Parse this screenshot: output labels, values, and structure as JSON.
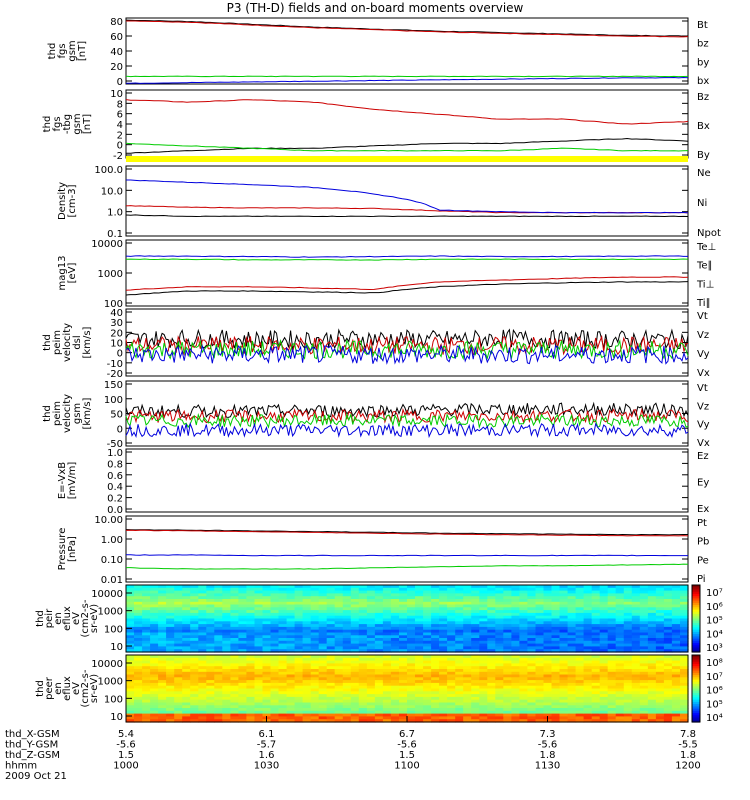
{
  "title": "P3 (TH-D) fields and on-board moments overview",
  "colors": {
    "black": "#000000",
    "red": "#cc0000",
    "green": "#00cc00",
    "blue": "#0000dd",
    "yellow": "#ffff00"
  },
  "chart_data": {
    "type": "line",
    "x_range": [
      "10:00",
      "12:00"
    ],
    "panels": [
      {
        "id": "fgs",
        "ylabel": [
          "thd",
          "fgs",
          "gsm",
          "[nT]"
        ],
        "ticks": [
          "80",
          "60",
          "40",
          "20",
          "0"
        ],
        "ylim": [
          -10,
          85
        ],
        "series": [
          {
            "name": "Bt",
            "color": "black",
            "values": [
              82,
              80,
              76,
              72,
              69,
              66,
              64,
              62,
              60,
              59
            ]
          },
          {
            "name": "bz",
            "color": "red",
            "values": [
              81,
              79,
              75,
              71,
              68,
              65,
              63,
              61,
              59,
              58
            ]
          },
          {
            "name": "by",
            "color": "green",
            "values": [
              1,
              1,
              1,
              1,
              1,
              1,
              1,
              1,
              1,
              1
            ]
          },
          {
            "name": "bx",
            "color": "blue",
            "values": [
              -9,
              -8,
              -7,
              -6,
              -5,
              -4,
              -3,
              -2,
              -1,
              -1
            ]
          }
        ]
      },
      {
        "id": "fgs_dbg",
        "ylabel": [
          "thd",
          "fgs",
          "-tbg",
          "gsm",
          "[nT]"
        ],
        "ticks": [
          "10",
          "8",
          "6",
          "4",
          "2",
          "0",
          "-2"
        ],
        "ylim": [
          -3,
          11
        ],
        "series": [
          {
            "name": "Bz",
            "color": "red",
            "values": [
              9,
              8.5,
              9,
              8.5,
              7,
              6,
              5,
              5,
              4,
              4.5
            ]
          },
          {
            "name": "Bx",
            "color": "black",
            "values": [
              -2,
              -1.5,
              -1,
              -1,
              -0.5,
              0,
              0,
              0.5,
              1,
              0.5
            ]
          },
          {
            "name": "By",
            "color": "green",
            "values": [
              0,
              -0.5,
              -1,
              -1.5,
              -1.5,
              -1.5,
              -1.5,
              -1,
              -1.5,
              -1.5
            ]
          }
        ]
      },
      {
        "id": "density",
        "ylabel": [
          "Density",
          "[cm-3]"
        ],
        "ticks": [
          "100.0",
          "10.0",
          "1.0",
          "0.1"
        ],
        "log": true,
        "ylim": [
          0.1,
          100
        ],
        "series": [
          {
            "name": "Ne",
            "color": "red",
            "values": [
              2,
              1.7,
              1.6,
              1.6,
              1.5,
              1.2,
              1,
              1,
              1,
              1
            ]
          },
          {
            "name": "Ni",
            "color": "black",
            "values": [
              0.8,
              0.7,
              0.7,
              0.7,
              0.7,
              0.7,
              0.7,
              0.7,
              0.7,
              0.7
            ]
          },
          {
            "name": "Npot",
            "color": "blue",
            "values": [
              25,
              20,
              16,
              12,
              6,
              1.3,
              1.1,
              1,
              1,
              1
            ]
          }
        ]
      },
      {
        "id": "temp",
        "ylabel": [
          "mag13",
          "[eV]"
        ],
        "ticks": [
          "10000",
          "1000",
          "100"
        ],
        "log": true,
        "ylim": [
          40,
          10000
        ],
        "series": [
          {
            "name": "Te⊥",
            "color": "red",
            "values": [
              150,
              200,
              200,
              180,
              160,
              300,
              350,
              400,
              450,
              450
            ]
          },
          {
            "name": "Te∥",
            "color": "black",
            "values": [
              100,
              140,
              140,
              130,
              120,
              200,
              250,
              280,
              300,
              300
            ]
          },
          {
            "name": "Ti⊥",
            "color": "blue",
            "values": [
              2600,
              2600,
              2500,
              2400,
              2500,
              2600,
              2500,
              2500,
              2600,
              2600
            ]
          },
          {
            "name": "Ti∥",
            "color": "green",
            "values": [
              2000,
              2000,
              1900,
              1900,
              1900,
              2000,
              2000,
              2000,
              2000,
              2000
            ]
          }
        ]
      },
      {
        "id": "vel_dsl",
        "ylabel": [
          "thd",
          "peim",
          "velocity",
          "dsl",
          "[km/s]"
        ],
        "ticks": [
          "40",
          "30",
          "20",
          "10",
          "0",
          "-10",
          "-20"
        ],
        "ylim": [
          -24,
          42
        ],
        "series": [
          {
            "name": "Vt",
            "color": "black",
            "values": [
              12,
              13,
              12,
              12,
              13,
              12,
              13,
              12,
              12,
              12
            ]
          },
          {
            "name": "Vz",
            "color": "red",
            "values": [
              6,
              6,
              6,
              6,
              6,
              6,
              6,
              6,
              6,
              6
            ]
          },
          {
            "name": "Vy",
            "color": "green",
            "values": [
              2,
              2,
              2,
              2,
              2,
              2,
              2,
              2,
              2,
              2
            ]
          },
          {
            "name": "Vx",
            "color": "blue",
            "values": [
              -3,
              -3,
              -3,
              -3,
              -3,
              -3,
              -3,
              -3,
              -3,
              -3
            ]
          }
        ]
      },
      {
        "id": "vel_gsm",
        "ylabel": [
          "thd",
          "peim",
          "velocity",
          "gsm",
          "[km/s]"
        ],
        "ticks": [
          "150",
          "100",
          "50",
          "0",
          "-50"
        ],
        "ylim": [
          -75,
          150
        ],
        "series": [
          {
            "name": "Vt",
            "color": "black",
            "values": [
              45,
              45,
              45,
              47,
              48,
              50,
              52,
              52,
              52,
              50
            ]
          },
          {
            "name": "Vz",
            "color": "red",
            "values": [
              28,
              28,
              28,
              28,
              28,
              30,
              30,
              30,
              30,
              30
            ]
          },
          {
            "name": "Vy",
            "color": "green",
            "values": [
              12,
              12,
              12,
              12,
              12,
              12,
              12,
              12,
              12,
              12
            ]
          },
          {
            "name": "Vx",
            "color": "blue",
            "values": [
              -20,
              -20,
              -20,
              -20,
              -20,
              -20,
              -20,
              -20,
              -20,
              -20
            ]
          }
        ]
      },
      {
        "id": "efield",
        "ylabel": [
          "E=-VxB",
          "[mV/m]"
        ],
        "ticks": [
          "1.0",
          "0.8",
          "0.6",
          "0.4",
          "0.2",
          "0.0"
        ],
        "ylim": [
          0,
          1
        ],
        "series": [
          {
            "name": "Ez",
            "color": "red",
            "values": []
          },
          {
            "name": "Ey",
            "color": "green",
            "values": []
          },
          {
            "name": "Ex",
            "color": "blue",
            "values": []
          }
        ]
      },
      {
        "id": "pressure",
        "ylabel": [
          "Pressure",
          "[nPa]"
        ],
        "ticks": [
          "10.00",
          "1.00",
          "0.10",
          "0.01"
        ],
        "log": true,
        "ylim": [
          0.008,
          14
        ],
        "series": [
          {
            "name": "Pt",
            "color": "black",
            "values": [
              3.0,
              2.8,
              2.6,
              2.4,
              2.2,
              2.0,
              1.9,
              1.8,
              1.7,
              1.7
            ]
          },
          {
            "name": "Pb",
            "color": "red",
            "values": [
              2.8,
              2.6,
              2.4,
              2.2,
              2.0,
              1.8,
              1.7,
              1.6,
              1.5,
              1.5
            ]
          },
          {
            "name": "Pe",
            "color": "green",
            "values": [
              0.04,
              0.035,
              0.035,
              0.035,
              0.04,
              0.045,
              0.05,
              0.05,
              0.055,
              0.06
            ]
          },
          {
            "name": "Pi",
            "color": "blue",
            "values": [
              0.17,
              0.17,
              0.16,
              0.16,
              0.16,
              0.16,
              0.16,
              0.16,
              0.16,
              0.16
            ]
          }
        ]
      }
    ],
    "spectrograms": [
      {
        "id": "peir",
        "ylabel": [
          "thd",
          "peir",
          "en",
          "eflux",
          "eV",
          "(cm2-s-",
          "sr-eV)"
        ],
        "ticks": [
          "10000",
          "1000",
          "100",
          "10"
        ],
        "colorbar": {
          "labels": [
            "10⁷",
            "10⁶",
            "10⁵",
            "10⁴",
            "10³"
          ]
        }
      },
      {
        "id": "peer",
        "ylabel": [
          "thd",
          "peer",
          "en",
          "eflux",
          "eV",
          "(cm2-s-",
          "sr-eV)"
        ],
        "ticks": [
          "10000",
          "1000",
          "100",
          "10"
        ],
        "colorbar": {
          "labels": [
            "10⁸",
            "10⁷",
            "10⁶",
            "10⁵",
            "10⁴"
          ]
        }
      }
    ],
    "x_axis": {
      "row_labels": [
        "thd_X-GSM",
        "thd_Y-GSM",
        "thd_Z-GSM",
        "hhmm",
        "2009 Oct 21"
      ],
      "columns": [
        [
          "5.4",
          "-5.6",
          "1.5",
          "1000"
        ],
        [
          "6.1",
          "-5.7",
          "1.6",
          "1030"
        ],
        [
          "6.7",
          "-5.6",
          "1.5",
          "1100"
        ],
        [
          "7.3",
          "-5.6",
          "1.8",
          "1130"
        ],
        [
          "7.8",
          "-5.5",
          "1.8",
          "1200"
        ]
      ]
    }
  }
}
